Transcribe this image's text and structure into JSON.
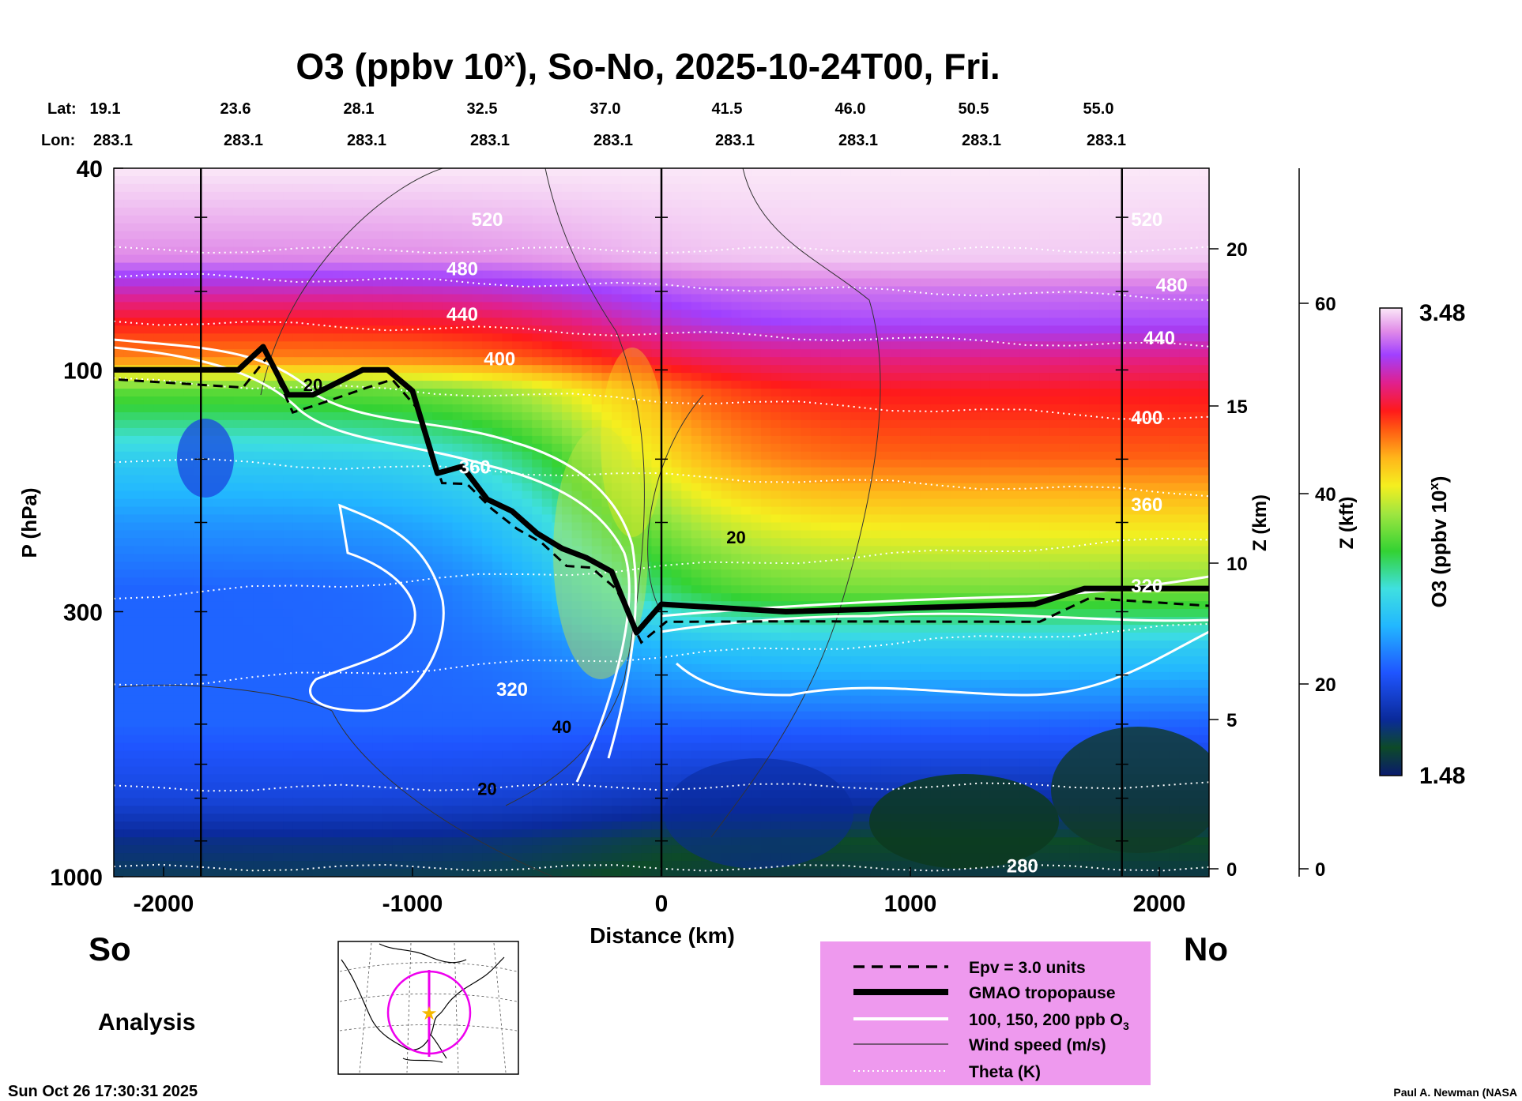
{
  "title": "O3 (ppbv 10^x), So-No, 2025-10-24T00, Fri.",
  "title_parts": {
    "pre": "O3 (ppbv 10",
    "sup": "x",
    "post": "), So-No, 2025-10-24T00, Fri."
  },
  "header": {
    "lat_label": "Lat:",
    "lon_label": "Lon:",
    "lats": [
      "19.1",
      "23.6",
      "28.1",
      "32.5",
      "37.0",
      "41.5",
      "46.0",
      "50.5",
      "55.0"
    ],
    "lons": [
      "283.1",
      "283.1",
      "283.1",
      "283.1",
      "283.1",
      "283.1",
      "283.1",
      "283.1",
      "283.1"
    ]
  },
  "axes": {
    "xlabel": "Distance (km)",
    "ylabel": "P (hPa)",
    "z_km_label": "Z (km)",
    "z_kft_label": "Z (kft)",
    "colorbar_label_pre": "O3 (ppbv 10",
    "colorbar_label_sup": "x",
    "colorbar_label_post": ")",
    "x_ticks": [
      "-2000",
      "-1000",
      "0",
      "1000",
      "2000"
    ],
    "p_ticks": [
      "40",
      "100",
      "300",
      "1000"
    ],
    "zkm_ticks": [
      "20",
      "15",
      "10",
      "5",
      "0"
    ],
    "zkft_ticks": [
      "60",
      "40",
      "20",
      "0"
    ],
    "colorbar_max": "3.48",
    "colorbar_min": "1.48"
  },
  "side_labels": {
    "south": "So",
    "north": "No",
    "analysis": "Analysis"
  },
  "legend": {
    "items": [
      {
        "label": "Epv = 3.0 units",
        "style": "dashed"
      },
      {
        "label": "GMAO tropopause",
        "style": "thick"
      },
      {
        "label": "100, 150, 200 ppb O",
        "sub": "3",
        "style": "white"
      },
      {
        "label": "Wind speed (m/s)",
        "style": "thin"
      },
      {
        "label": "Theta (K)",
        "style": "dotted"
      }
    ],
    "background": "#ee99ee"
  },
  "footer": {
    "timestamp": "Sun Oct 26 17:30:31 2025",
    "credit": "Paul A. Newman (NASA"
  },
  "chart_data": {
    "type": "heatmap",
    "title": "O3 (ppbv 10^x), So-No, 2025-10-24T00, Fri.",
    "xlabel": "Distance (km)",
    "ylabel": "P (hPa)",
    "xlim": [
      -2200,
      2200
    ],
    "ylim_hpa": [
      1000,
      40
    ],
    "y_scale": "log",
    "colorbar_range_log10_ppbv": [
      1.48,
      3.48
    ],
    "tropopause_hpa": {
      "x_km": [
        -2200,
        -1700,
        -1600,
        -1500,
        -1400,
        -1200,
        -1100,
        -1000,
        -900,
        -800,
        -700,
        -600,
        -500,
        -400,
        -300,
        -200,
        -100,
        0,
        500,
        1500,
        1700,
        2200
      ],
      "p_hpa": [
        100,
        100,
        90,
        112,
        112,
        100,
        100,
        110,
        160,
        155,
        180,
        190,
        210,
        225,
        235,
        250,
        330,
        290,
        300,
        290,
        270,
        270
      ]
    },
    "theta_labels_K": [
      {
        "value": "520",
        "x_km": -700,
        "p_hpa": 52
      },
      {
        "value": "480",
        "x_km": -800,
        "p_hpa": 65
      },
      {
        "value": "440",
        "x_km": -800,
        "p_hpa": 80
      },
      {
        "value": "400",
        "x_km": -650,
        "p_hpa": 98
      },
      {
        "value": "360",
        "x_km": -750,
        "p_hpa": 160
      },
      {
        "value": "320",
        "x_km": -600,
        "p_hpa": 440
      },
      {
        "value": "520",
        "x_km": 1950,
        "p_hpa": 52
      },
      {
        "value": "480",
        "x_km": 2050,
        "p_hpa": 70
      },
      {
        "value": "440",
        "x_km": 2000,
        "p_hpa": 89
      },
      {
        "value": "400",
        "x_km": 1950,
        "p_hpa": 128
      },
      {
        "value": "360",
        "x_km": 1950,
        "p_hpa": 190
      },
      {
        "value": "320",
        "x_km": 1950,
        "p_hpa": 275
      },
      {
        "value": "280",
        "x_km": 1450,
        "p_hpa": 980
      }
    ],
    "wind_labels_ms": [
      {
        "value": "20",
        "x_km": -1400,
        "p_hpa": 110
      },
      {
        "value": "20",
        "x_km": 300,
        "p_hpa": 220
      },
      {
        "value": "40",
        "x_km": -400,
        "p_hpa": 520
      },
      {
        "value": "20",
        "x_km": -700,
        "p_hpa": 690
      }
    ],
    "theta_lines_hpa": [
      {
        "theta": 520,
        "p": [
          58,
          58
        ]
      },
      {
        "theta": 480,
        "p": [
          65,
          72
        ]
      },
      {
        "theta": 440,
        "p": [
          80,
          90
        ]
      },
      {
        "theta": 400,
        "p": [
          105,
          125
        ]
      },
      {
        "theta": 360,
        "p": [
          150,
          175
        ]
      },
      {
        "theta": 340,
        "p": [
          280,
          215
        ]
      },
      {
        "theta": 320,
        "p": [
          420,
          320
        ]
      },
      {
        "theta": 300,
        "p": [
          670,
          660
        ]
      },
      {
        "theta": 280,
        "p": [
          960,
          960
        ]
      }
    ],
    "o3_bands_log10": [
      {
        "p": 40,
        "south": 3.48,
        "north": 3.48
      },
      {
        "p": 60,
        "south": 3.38,
        "north": 3.45
      },
      {
        "p": 70,
        "south": 3.2,
        "north": 3.35
      },
      {
        "p": 80,
        "south": 3.05,
        "north": 3.3
      },
      {
        "p": 95,
        "south": 2.9,
        "north": 3.15
      },
      {
        "p": 110,
        "south": 2.5,
        "north": 3.05
      },
      {
        "p": 150,
        "south": 2.2,
        "north": 2.95
      },
      {
        "p": 200,
        "south": 2.05,
        "north": 2.75
      },
      {
        "p": 270,
        "south": 1.95,
        "north": 2.55
      },
      {
        "p": 350,
        "south": 1.95,
        "north": 2.2
      },
      {
        "p": 500,
        "south": 1.95,
        "north": 1.95
      },
      {
        "p": 700,
        "south": 1.85,
        "north": 1.75
      },
      {
        "p": 850,
        "south": 1.7,
        "north": 1.6
      },
      {
        "p": 1000,
        "south": 1.65,
        "north": 1.55
      }
    ]
  }
}
